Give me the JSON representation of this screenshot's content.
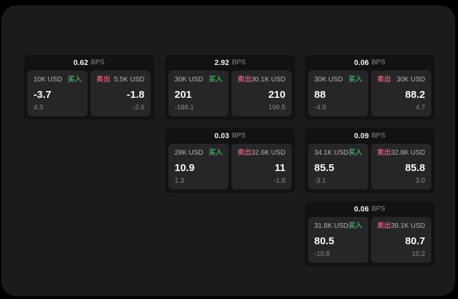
{
  "labels": {
    "buy": "买入",
    "sell": "卖出",
    "bps_unit": "BPS"
  },
  "colors": {
    "buy": "#46a55e",
    "sell": "#cc5a6b"
  },
  "cards": [
    {
      "bps": "0.62",
      "buy": {
        "amount": "10K USD",
        "value": "-3.7",
        "delta": "4.3"
      },
      "sell": {
        "amount": "5.5K USD",
        "value": "-1.8",
        "delta": "-2.6"
      }
    },
    {
      "bps": "2.92",
      "buy": {
        "amount": "30K USD",
        "value": "201",
        "delta": "-188.1"
      },
      "sell": {
        "amount": "30.1K USD",
        "value": "210",
        "delta": "196.5"
      }
    },
    {
      "bps": "0.06",
      "buy": {
        "amount": "30K USD",
        "value": "88",
        "delta": "-4.9"
      },
      "sell": {
        "amount": "30K USD",
        "value": "88.2",
        "delta": "4.7"
      }
    },
    {
      "bps": "0.03",
      "buy": {
        "amount": "28K USD",
        "value": "10.9",
        "delta": "1.3"
      },
      "sell": {
        "amount": "32.6K USD",
        "value": "11",
        "delta": "-1.8"
      }
    },
    {
      "bps": "0.09",
      "buy": {
        "amount": "34.1K USD",
        "value": "85.5",
        "delta": "-3.1"
      },
      "sell": {
        "amount": "32.8K USD",
        "value": "85.8",
        "delta": "3.0"
      }
    },
    {
      "bps": "0.06",
      "buy": {
        "amount": "31.8K USD",
        "value": "80.5",
        "delta": "-10.8"
      },
      "sell": {
        "amount": "39.1K USD",
        "value": "80.7",
        "delta": "10.2"
      }
    }
  ]
}
